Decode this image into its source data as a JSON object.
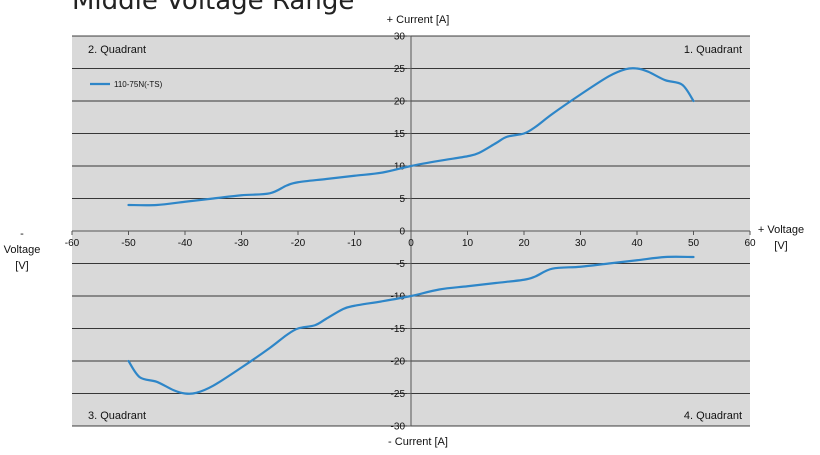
{
  "title": "Middle Voltage Range",
  "axis_captions": {
    "top": "+ Current [A]",
    "bottom": "- Current [A]",
    "left_line1": "- Voltage",
    "left_line2": "[V]",
    "right_line1": "+ Voltage",
    "right_line2": "[V]"
  },
  "quadrants": {
    "q1": "1. Quadrant",
    "q2": "2. Quadrant",
    "q3": "3. Quadrant",
    "q4": "4. Quadrant"
  },
  "colors": {
    "plot_background": "#d9d9d9",
    "series": "#2e86c8",
    "gridline": "#000000"
  },
  "chart_data": {
    "type": "line",
    "xlabel": "Voltage [V]",
    "ylabel": "Current [A]",
    "xlim": [
      -60,
      60
    ],
    "ylim": [
      -30,
      30
    ],
    "x_ticks": [
      -60,
      -50,
      -40,
      -30,
      -20,
      -10,
      0,
      10,
      20,
      30,
      40,
      50,
      60
    ],
    "y_ticks": [
      -30,
      -25,
      -20,
      -15,
      -10,
      -5,
      0,
      5,
      10,
      15,
      20,
      25,
      30
    ],
    "grid": true,
    "legend_position": "top-left",
    "series": [
      {
        "name": "110-75N(-TS)",
        "segments": [
          {
            "x": [
              -50,
              -45,
              -40,
              -35,
              -30,
              -25,
              -22,
              -20,
              -15,
              -10,
              -5,
              0,
              5,
              10,
              12,
              15,
              17,
              20,
              22,
              25,
              30,
              35,
              38,
              40,
              42,
              45,
              48,
              50
            ],
            "y": [
              4,
              4,
              4.5,
              5,
              5.5,
              5.8,
              7,
              7.5,
              8,
              8.5,
              9,
              10,
              10.8,
              11.5,
              12,
              13.5,
              14.5,
              15,
              16,
              18,
              21,
              23.8,
              24.9,
              25,
              24.5,
              23.2,
              22.5,
              20
            ]
          },
          {
            "x": [
              -50,
              -48,
              -45,
              -42,
              -40,
              -38,
              -35,
              -30,
              -25,
              -22,
              -20,
              -17,
              -15,
              -12,
              -10,
              -5,
              0,
              5,
              10,
              15,
              20,
              22,
              25,
              30,
              35,
              40,
              45,
              50
            ],
            "y": [
              -20,
              -22.5,
              -23.2,
              -24.5,
              -25,
              -24.9,
              -23.8,
              -21,
              -18,
              -16,
              -15,
              -14.5,
              -13.5,
              -12,
              -11.5,
              -10.8,
              -10,
              -9,
              -8.5,
              -8,
              -7.5,
              -7,
              -5.8,
              -5.5,
              -5,
              -4.5,
              -4,
              -4
            ]
          }
        ]
      }
    ]
  }
}
